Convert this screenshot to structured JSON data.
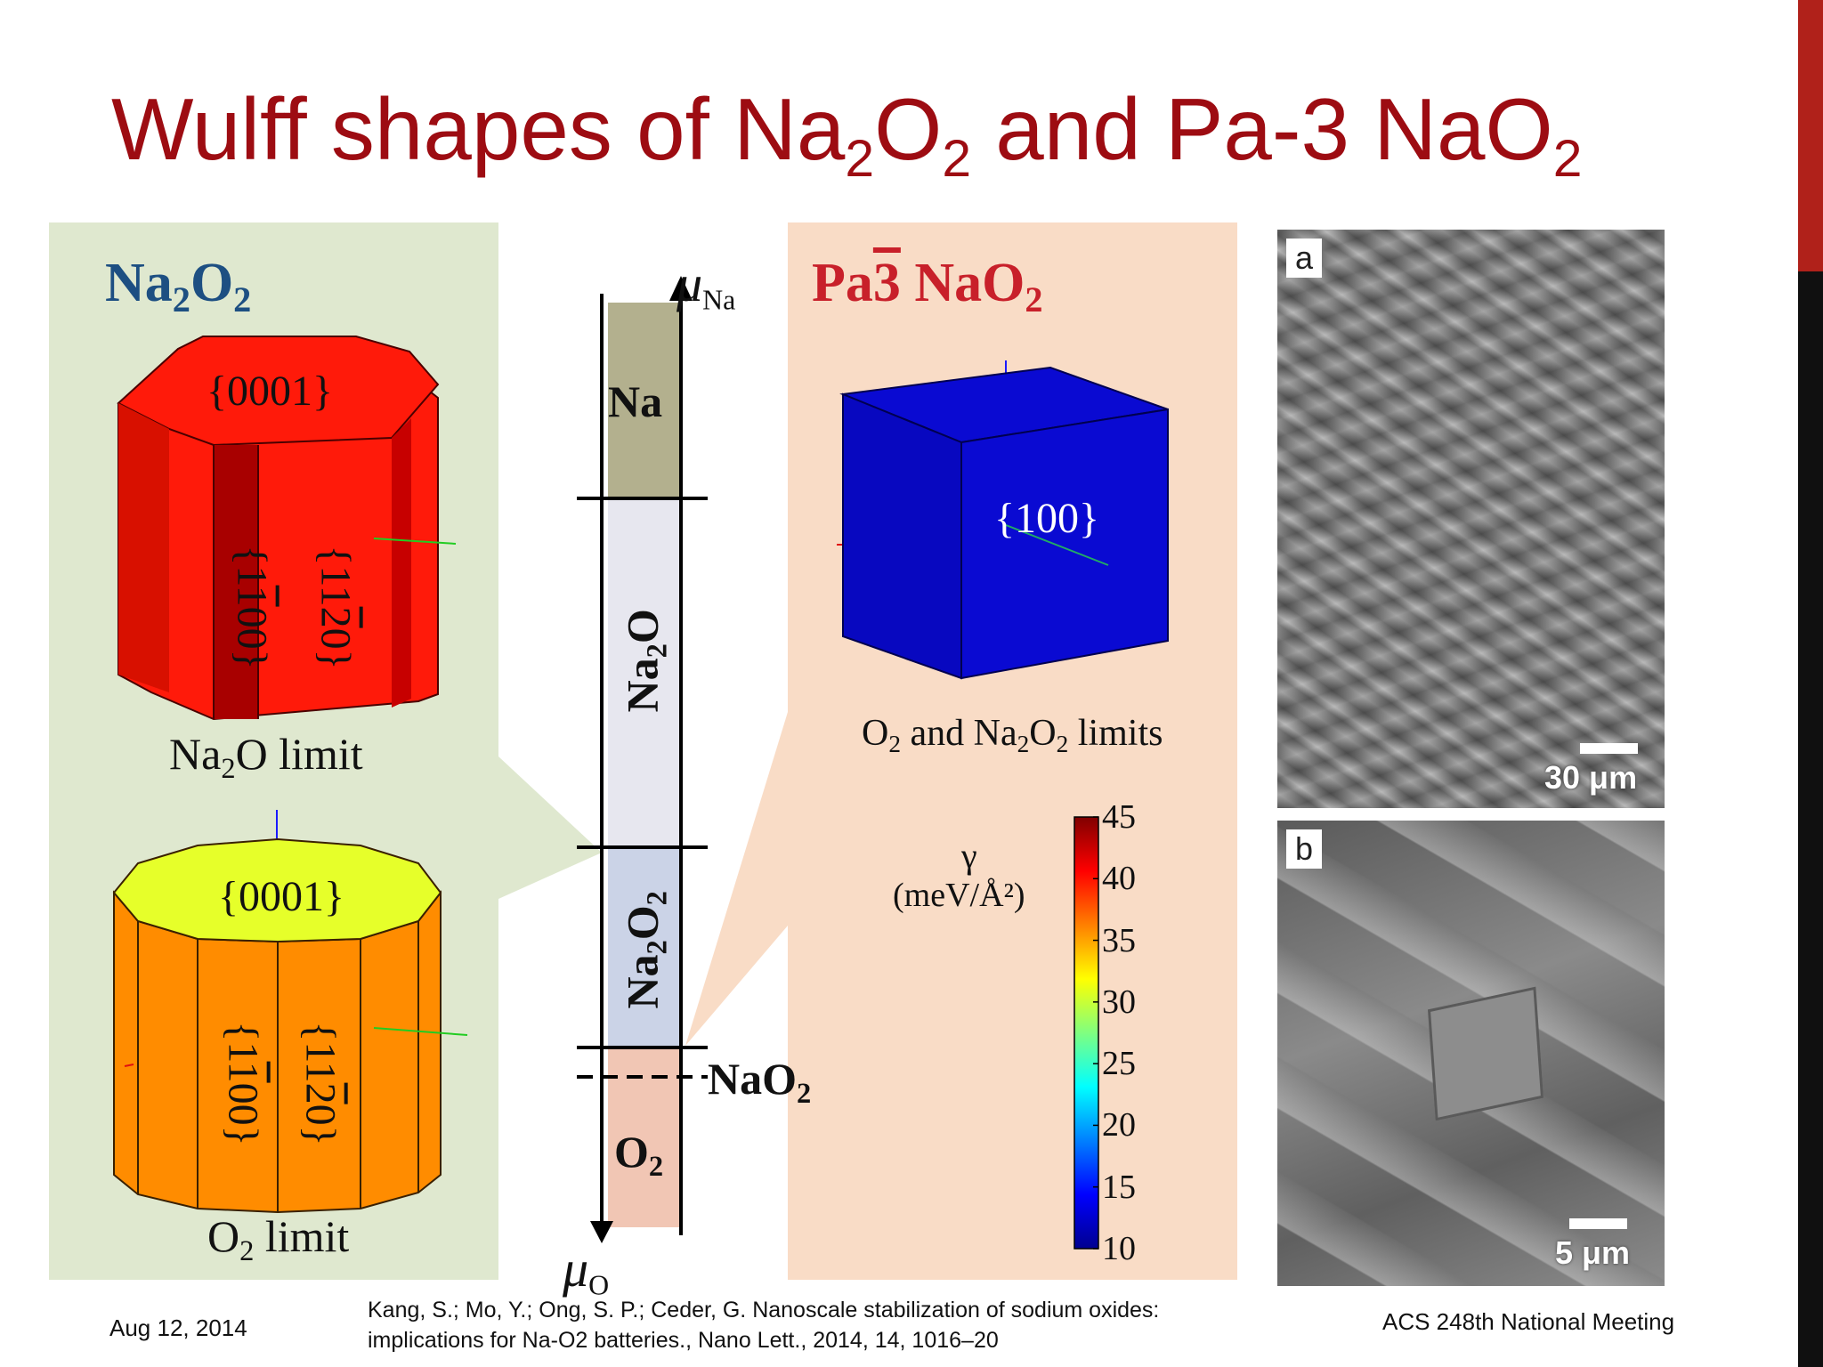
{
  "title": {
    "part1": "Wulff shapes of Na",
    "sub1": "2",
    "part2": "O",
    "sub2": "2",
    "part3": " and Pa-3 NaO",
    "sub3": "2"
  },
  "left_panel": {
    "heading_main": "Na",
    "heading_sub1": "2",
    "heading_o": "O",
    "heading_sub2": "2",
    "top_shape": {
      "color": "#ff1a0a",
      "facet_top": "{0001}",
      "facet_side1": "{1̄100}",
      "facet_side1_parts": [
        "{1",
        "1",
        "00}"
      ],
      "facet_side2_parts": [
        "{11",
        "2",
        "0}"
      ],
      "caption_a": "Na",
      "caption_sub": "2",
      "caption_b": "O limit"
    },
    "bottom_shape": {
      "color": "#ff8c00",
      "top_color": "#e6ff2a",
      "facet_top": "{0001}",
      "facet_side1_parts": [
        "{1",
        "1",
        "00}"
      ],
      "facet_side2_parts": [
        "{11",
        "2",
        "0}"
      ],
      "caption_a": "O",
      "caption_sub": "2",
      "caption_b": " limit"
    }
  },
  "phase_diagram": {
    "axis_top_mu": "μ",
    "axis_top_sub": "Na",
    "axis_bottom_mu": "μ",
    "axis_bottom_sub": "O",
    "regions": [
      {
        "name": "Na",
        "color": "#b3b08e"
      },
      {
        "name": "Na2O",
        "color": "#e7e7ef"
      },
      {
        "name": "Na2O2",
        "color": "#cbd3e7"
      },
      {
        "name": "O2",
        "color": "#f1c6b4"
      }
    ],
    "label_na": "Na",
    "label_na2o_a": "Na",
    "label_na2o_sub": "2",
    "label_na2o_b": "O",
    "label_na2o2_a": "Na",
    "label_na2o2_sub1": "2",
    "label_na2o2_b": "O",
    "label_na2o2_sub2": "2",
    "label_nao2_a": "NaO",
    "label_nao2_sub": "2",
    "label_o2_a": "O",
    "label_o2_sub": "2"
  },
  "right_panel": {
    "heading_pa": "Pa",
    "heading_3": "3",
    "heading_nao": " NaO",
    "heading_sub": "2",
    "cube_color": "#0a0ad2",
    "cube_facet": "{100}",
    "caption_o": "O",
    "caption_sub1": "2",
    "caption_mid": " and Na",
    "caption_sub2": "2",
    "caption_o2": "O",
    "caption_sub3": "2",
    "caption_end": " limits",
    "colorbar": {
      "label_gamma": "γ",
      "label_unit": "(meV/Å²)",
      "min": 10,
      "max": 45,
      "ticks": [
        "45",
        "40",
        "35",
        "30",
        "25",
        "20",
        "15",
        "10"
      ]
    }
  },
  "sem_images": [
    {
      "label": "a",
      "scale": "30 μm"
    },
    {
      "label": "b",
      "scale": "5 μm"
    }
  ],
  "footer": {
    "date": "Aug 12, 2014",
    "citation": "Kang, S.; Mo, Y.; Ong, S. P.; Ceder, G. Nanoscale stabilization of sodium oxides: implications for Na-O2 batteries., Nano Lett., 2014, 14, 1016–20",
    "venue": "ACS 248th National Meeting"
  }
}
